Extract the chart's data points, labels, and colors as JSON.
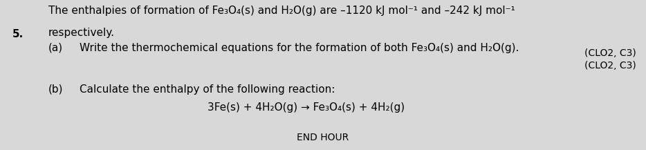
{
  "background_color": "#d8d8d8",
  "question_number": "5.",
  "line1": "The enthalpies of formation of Fe₃O₄(s) and H₂O(g) are –1120 kJ mol⁻¹ and –242 kJ mol⁻¹",
  "line2": "respectively.",
  "line3_a_label": "(a)",
  "line3_a_text": "Write the thermochemical equations for the formation of both Fe₃O₄(s) and H₂O(g).",
  "clo_a": "(CLO2, C3)",
  "clo_b": "(CLO2, C3)",
  "line4_b_label": "(b)",
  "line4_b_text": "Calculate the enthalpy of the following reaction:",
  "reaction": "3Fe(s) + 4H₂O(g) → Fe₃O₄(s) + 4H₂(g)",
  "bottom_text": "END HOUR",
  "font_size_main": 11.0,
  "font_size_small": 10.0
}
